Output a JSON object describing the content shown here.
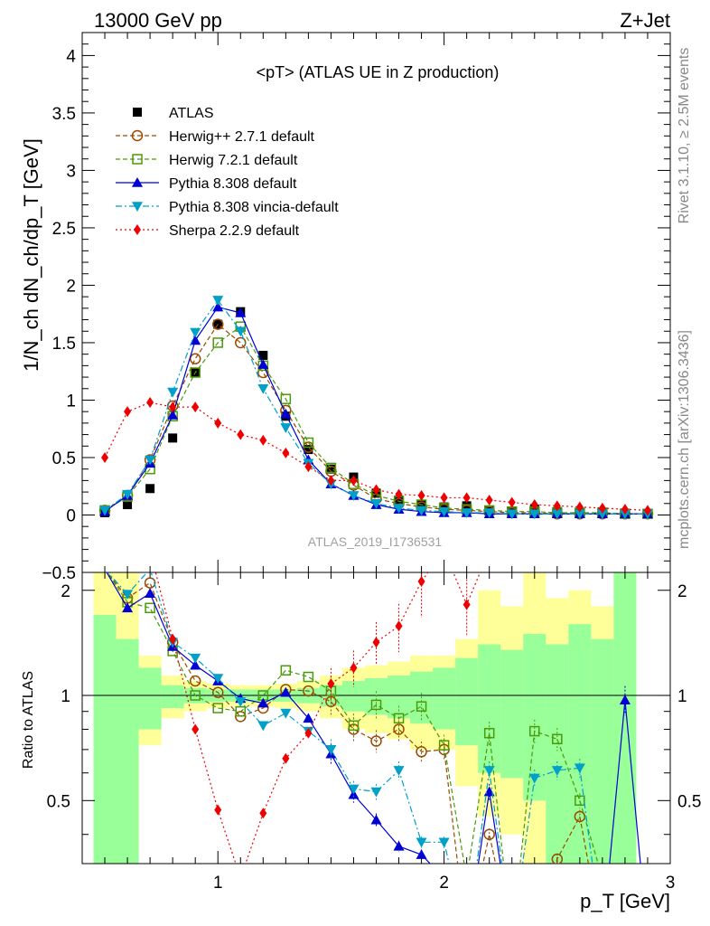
{
  "header": {
    "energy_label": "13000 GeV pp",
    "process_label": "Z+Jet",
    "side_label_1": "Rivet 3.1.10, ≥ 2.5M events",
    "side_label_2": "mcplots.cern.ch [arXiv:1306.3436]"
  },
  "chart_data": {
    "type": "line",
    "title": "<pT> (ATLAS UE in Z production)",
    "xlabel": "p_T [GeV]",
    "ylabel": "1/N_ch dN_ch/dp_T [GeV]",
    "ratio_ylabel": "Ratio to ATLAS",
    "analysis_label": "ATLAS_2019_I1736531",
    "xlim": [
      0.4,
      3.0
    ],
    "ylim": [
      -0.5,
      4.2
    ],
    "ratio_ylim": [
      0.33,
      2.25
    ],
    "x_ticks": [
      1,
      2,
      3
    ],
    "y_ticks": [
      -0.5,
      0,
      0.5,
      1,
      1.5,
      2,
      2.5,
      3,
      3.5,
      4
    ],
    "ratio_ticks": [
      0.5,
      1,
      2
    ],
    "x": [
      0.5,
      0.6,
      0.7,
      0.8,
      0.9,
      1.0,
      1.1,
      1.2,
      1.3,
      1.4,
      1.5,
      1.6,
      1.7,
      1.8,
      1.9,
      2.0,
      2.1,
      2.2,
      2.3,
      2.4,
      2.5,
      2.6,
      2.7,
      2.8,
      2.9
    ],
    "series": [
      {
        "name": "ATLAS",
        "color": "#000000",
        "marker": "square",
        "line": "none",
        "values": [
          0.02,
          0.09,
          0.23,
          0.67,
          1.24,
          1.66,
          1.77,
          1.39,
          0.86,
          0.57,
          0.4,
          0.33,
          0.19,
          0.13,
          0.09,
          0.07,
          0.08,
          0.04,
          0.03,
          0.05,
          0.03,
          0.02,
          0.02,
          0.01,
          0.01
        ],
        "ratio": []
      },
      {
        "name": "Herwig++ 2.7.1 default",
        "color": "#9a4a00",
        "marker": "circle-open",
        "line": "dashed",
        "values": [
          0.04,
          0.17,
          0.48,
          0.95,
          1.36,
          1.66,
          1.5,
          1.24,
          0.91,
          0.59,
          0.38,
          0.26,
          0.14,
          0.1,
          0.07,
          0.05,
          0.04,
          0.03,
          0.02,
          0.02,
          0.01,
          0.01,
          0.01,
          0.01,
          0.01
        ],
        "ratio": [
          2.3,
          1.9,
          2.1,
          1.42,
          1.1,
          1.02,
          0.87,
          0.92,
          1.04,
          1.03,
          0.96,
          0.8,
          0.74,
          0.8,
          0.69,
          0.7,
          0.2,
          0.4,
          0.2,
          0.2,
          0.34,
          0.45,
          0.2,
          0.2,
          0.2
        ]
      },
      {
        "name": "Herwig 7.2.1 default",
        "color": "#4a9a0a",
        "marker": "square-open",
        "line": "dashed",
        "values": [
          0.04,
          0.16,
          0.4,
          0.86,
          1.24,
          1.5,
          1.64,
          1.3,
          1.01,
          0.63,
          0.41,
          0.27,
          0.17,
          0.12,
          0.09,
          0.06,
          0.05,
          0.04,
          0.03,
          0.03,
          0.02,
          0.02,
          0.02,
          0.01,
          0.01
        ],
        "ratio": [
          2.3,
          1.85,
          1.78,
          1.34,
          1.0,
          0.92,
          0.9,
          1.0,
          1.18,
          1.13,
          1.03,
          0.82,
          0.94,
          0.86,
          0.93,
          0.72,
          0.3,
          0.78,
          0.2,
          0.79,
          0.75,
          0.5,
          0.3,
          0.2,
          0.2
        ]
      },
      {
        "name": "Pythia 8.308 default",
        "color": "#0000d4",
        "marker": "triangle-up",
        "line": "solid",
        "values": [
          0.03,
          0.17,
          0.45,
          0.87,
          1.52,
          1.81,
          1.76,
          1.31,
          0.88,
          0.48,
          0.27,
          0.17,
          0.09,
          0.05,
          0.03,
          0.02,
          0.02,
          0.01,
          0.01,
          0.01,
          0.01,
          0.01,
          0.01,
          0.01,
          0.01
        ],
        "ratio": [
          2.3,
          1.78,
          1.96,
          1.38,
          1.22,
          1.1,
          0.98,
          0.95,
          1.02,
          0.86,
          0.68,
          0.52,
          0.44,
          0.37,
          0.35,
          0.3,
          0.2,
          0.53,
          0.2,
          0.2,
          0.2,
          0.2,
          0.2,
          0.97,
          0.2
        ]
      },
      {
        "name": "Pythia 8.308 vincia-default",
        "color": "#00a0c8",
        "marker": "triangle-down",
        "line": "dashdot",
        "values": [
          0.04,
          0.18,
          0.48,
          1.07,
          1.59,
          1.87,
          1.6,
          1.1,
          0.76,
          0.45,
          0.27,
          0.17,
          0.1,
          0.06,
          0.04,
          0.03,
          0.02,
          0.02,
          0.01,
          0.01,
          0.01,
          0.01,
          0.01,
          0.01,
          0.01
        ],
        "ratio": [
          2.3,
          1.95,
          2.3,
          1.42,
          1.28,
          1.12,
          0.96,
          0.82,
          0.89,
          0.79,
          0.7,
          0.54,
          0.53,
          0.61,
          0.38,
          0.38,
          0.2,
          0.61,
          0.2,
          0.58,
          0.61,
          0.62,
          0.2,
          0.2,
          0.2
        ]
      },
      {
        "name": "Sherpa 2.2.9 default",
        "color": "#ee0000",
        "marker": "diamond",
        "line": "dotted",
        "values": [
          0.5,
          0.9,
          0.98,
          0.94,
          0.94,
          0.8,
          0.7,
          0.65,
          0.54,
          0.42,
          0.3,
          0.3,
          0.22,
          0.18,
          0.17,
          0.15,
          0.15,
          0.13,
          0.11,
          0.09,
          0.08,
          0.07,
          0.06,
          0.05,
          0.04
        ],
        "ratio": [
          2.3,
          2.4,
          2.6,
          1.45,
          0.8,
          0.47,
          0.3,
          0.46,
          0.66,
          0.78,
          1.08,
          1.2,
          1.42,
          1.58,
          2.12,
          2.6,
          1.82,
          2.6,
          2.6,
          2.3,
          2.6,
          2.6,
          2.6,
          2.6,
          2.6
        ]
      }
    ],
    "band_yellow": {
      "edges": [
        0.45,
        0.55,
        0.65,
        0.75,
        0.85,
        0.95,
        1.05,
        1.15,
        1.25,
        1.35,
        1.45,
        1.55,
        1.65,
        1.75,
        1.85,
        1.95,
        2.05,
        2.15,
        2.25,
        2.35,
        2.45,
        2.55,
        2.65,
        2.75,
        2.85
      ],
      "lo": [
        0.33,
        0.33,
        0.72,
        0.86,
        0.9,
        0.92,
        0.93,
        0.93,
        0.92,
        0.9,
        0.86,
        0.8,
        0.78,
        0.75,
        0.7,
        0.7,
        0.55,
        0.45,
        0.4,
        0.33,
        0.33,
        0.33,
        0.33,
        0.33
      ],
      "hi": [
        2.3,
        2.3,
        1.3,
        1.14,
        1.1,
        1.08,
        1.07,
        1.07,
        1.08,
        1.1,
        1.14,
        1.2,
        1.22,
        1.25,
        1.3,
        1.3,
        1.45,
        2.0,
        1.8,
        2.3,
        1.9,
        2.0,
        1.8,
        2.3
      ]
    },
    "band_green": {
      "edges": [
        0.45,
        0.55,
        0.65,
        0.75,
        0.85,
        0.95,
        1.05,
        1.15,
        1.25,
        1.35,
        1.45,
        1.55,
        1.65,
        1.75,
        1.85,
        1.95,
        2.05,
        2.15,
        2.25,
        2.35,
        2.45,
        2.55,
        2.65,
        2.75,
        2.85
      ],
      "lo": [
        0.33,
        0.33,
        0.8,
        0.92,
        0.95,
        0.96,
        0.96,
        0.96,
        0.96,
        0.95,
        0.93,
        0.9,
        0.88,
        0.86,
        0.83,
        0.8,
        0.72,
        0.6,
        0.58,
        0.5,
        0.33,
        0.33,
        0.33,
        0.33
      ],
      "hi": [
        1.7,
        1.45,
        1.2,
        1.07,
        1.05,
        1.04,
        1.04,
        1.04,
        1.04,
        1.05,
        1.07,
        1.1,
        1.12,
        1.14,
        1.17,
        1.2,
        1.28,
        1.4,
        1.35,
        1.5,
        1.4,
        1.6,
        1.45,
        2.3
      ]
    }
  }
}
